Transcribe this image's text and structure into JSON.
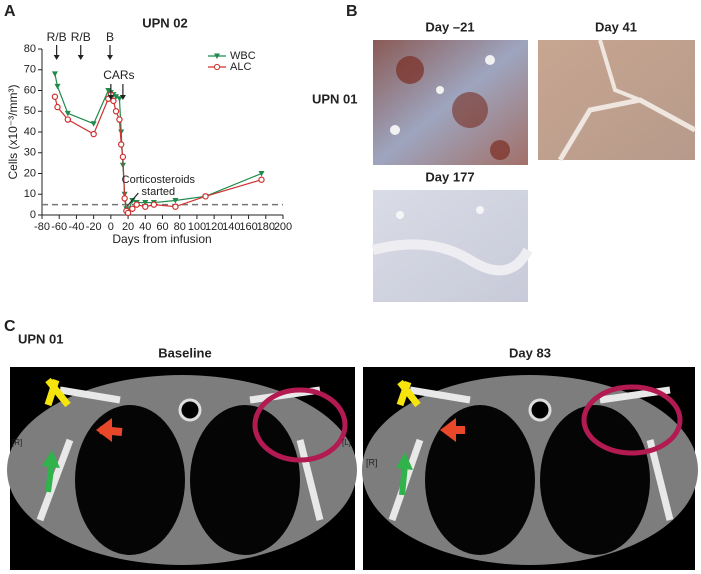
{
  "chart_data": {
    "type": "line",
    "title": "UPN 02",
    "xlabel": "Days from infusion",
    "ylabel": "Cells (x10⁻³/mm³)",
    "x": [
      -65,
      -62,
      -50,
      -20,
      -3,
      0,
      3,
      6,
      10,
      12,
      14,
      16,
      18,
      20,
      25,
      30,
      40,
      50,
      75,
      110,
      175
    ],
    "series": [
      {
        "name": "WBC",
        "color": "#1e8a4c",
        "marker": "triangle",
        "values": [
          68,
          62,
          49,
          44,
          60,
          59,
          58,
          57,
          56,
          40,
          24,
          10,
          3,
          2,
          7,
          6,
          6,
          6,
          7,
          9,
          20
        ]
      },
      {
        "name": "ALC",
        "color": "#d0302f",
        "marker": "circle",
        "values": [
          57,
          52,
          46,
          39,
          56,
          58,
          55,
          50,
          46,
          34,
          28,
          8,
          2,
          1,
          3,
          5,
          4,
          5,
          4,
          9,
          17
        ]
      }
    ],
    "xlim": [
      -80,
      200
    ],
    "xticks": [
      -80,
      -60,
      -40,
      -20,
      0,
      20,
      40,
      60,
      80,
      100,
      120,
      140,
      160,
      180,
      200
    ],
    "ylim": [
      0,
      80
    ],
    "yticks": [
      0,
      10,
      20,
      30,
      40,
      50,
      60,
      70,
      80
    ],
    "hline": 5,
    "legend": "upper right",
    "arrows": [
      {
        "label": "R/B",
        "x": -63
      },
      {
        "label": "R/B",
        "x": -35
      },
      {
        "label": "B",
        "x": -1
      }
    ],
    "cars": {
      "label": "CARs",
      "x": [
        0,
        14
      ]
    },
    "note": {
      "lines": [
        "Corticosteroids",
        "started"
      ],
      "x": 18
    }
  },
  "panel_labels": [
    "A",
    "B",
    "C"
  ],
  "panel_b": {
    "subject": "UPN 01",
    "images": [
      {
        "label": "Day –21"
      },
      {
        "label": "Day 41"
      },
      {
        "label": "Day 177"
      }
    ]
  },
  "panel_c": {
    "subject": "UPN 01",
    "images": [
      {
        "label": "Baseline",
        "side_marks": [
          "[R]",
          "[L]"
        ]
      },
      {
        "label": "Day 83",
        "side_marks": [
          "[R]"
        ]
      }
    ]
  }
}
